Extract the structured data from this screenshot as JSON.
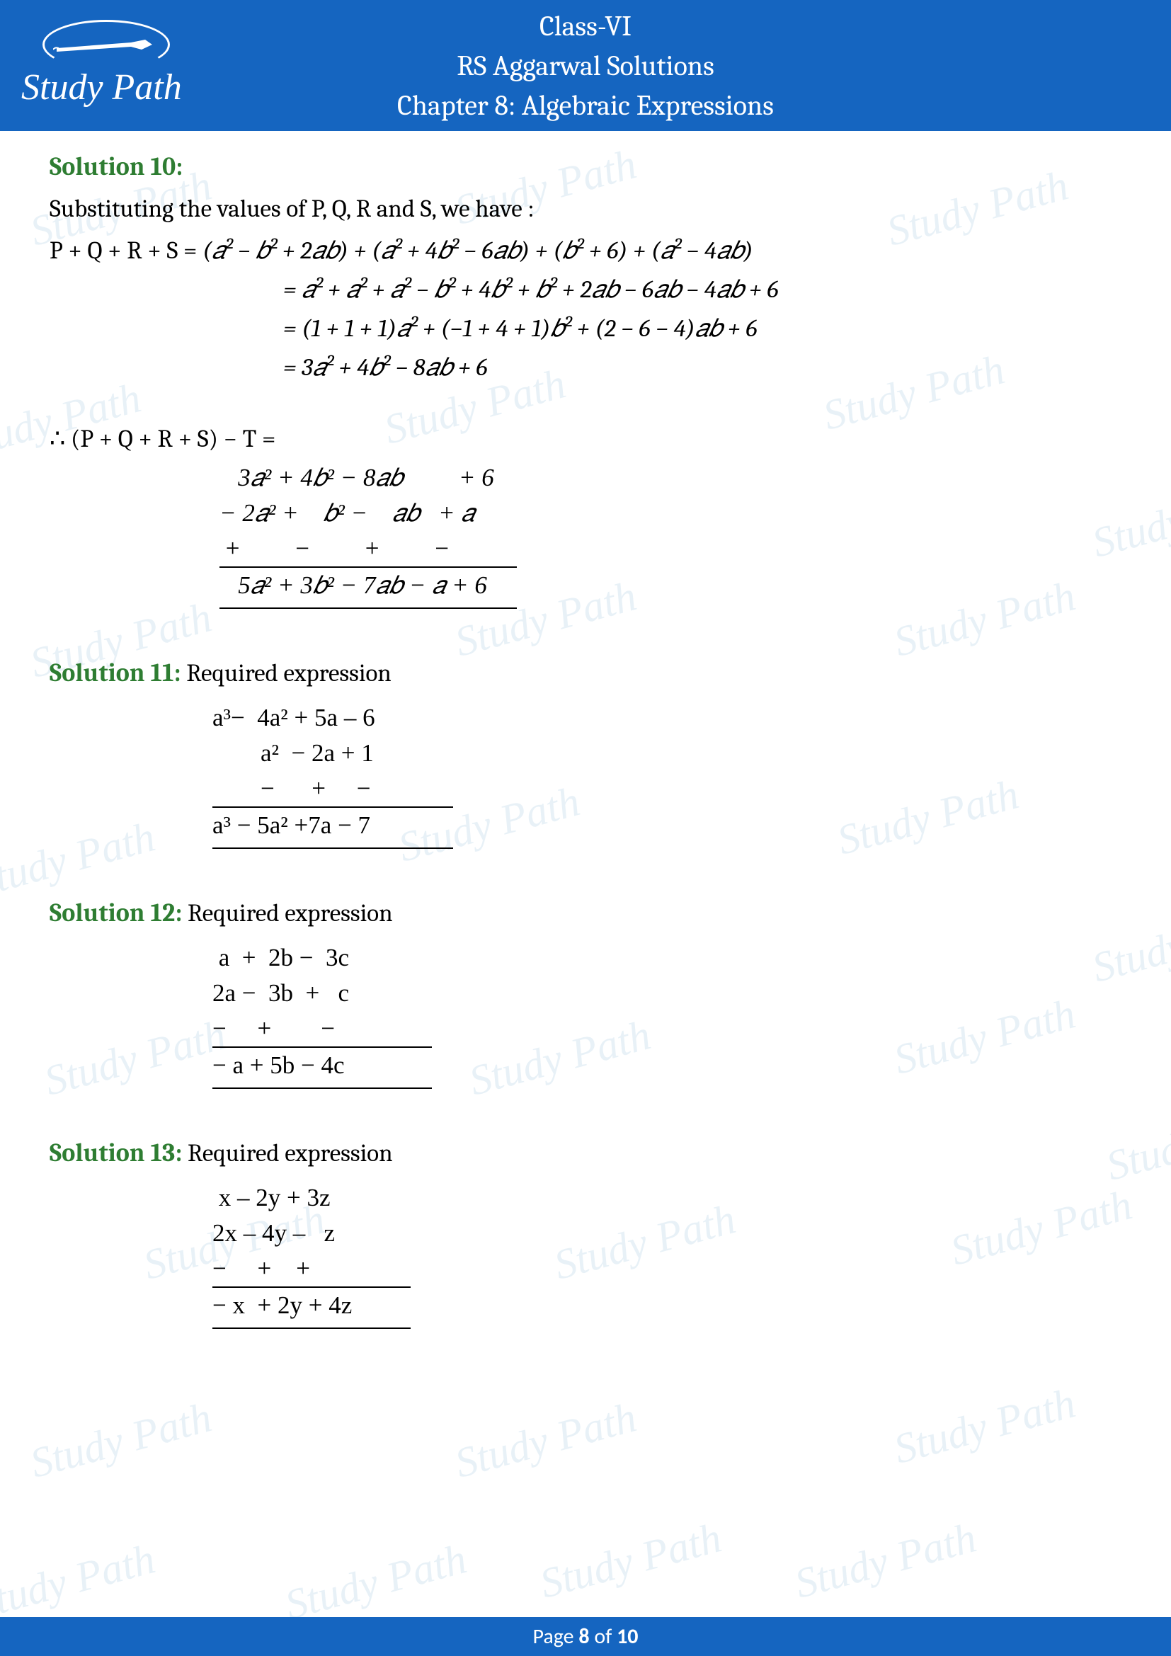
{
  "header": {
    "logo_text": "Study Path",
    "line1": "Class-VI",
    "line2": "RS Aggarwal Solutions",
    "line3": "Chapter 8: Algebraic Expressions",
    "bg_color": "#1565c0",
    "text_color": "#ffffff",
    "font_size": 40
  },
  "watermark": {
    "text": "Study Path",
    "color": "rgba(100,160,200,0.15)",
    "font_size": 60,
    "rotation_deg": -15,
    "positions": [
      [
        40,
        260
      ],
      [
        640,
        230
      ],
      [
        1250,
        260
      ],
      [
        -60,
        560
      ],
      [
        540,
        540
      ],
      [
        1160,
        520
      ],
      [
        40,
        870
      ],
      [
        640,
        840
      ],
      [
        1260,
        840
      ],
      [
        1540,
        700
      ],
      [
        -40,
        1180
      ],
      [
        560,
        1130
      ],
      [
        1180,
        1120
      ],
      [
        1540,
        1300
      ],
      [
        60,
        1460
      ],
      [
        660,
        1460
      ],
      [
        1260,
        1430
      ],
      [
        200,
        1720
      ],
      [
        780,
        1720
      ],
      [
        1340,
        1700
      ],
      [
        1560,
        1580
      ],
      [
        40,
        2000
      ],
      [
        640,
        2000
      ],
      [
        1260,
        1980
      ],
      [
        -40,
        2200
      ],
      [
        400,
        2200
      ],
      [
        760,
        2170
      ],
      [
        1120,
        2170
      ]
    ]
  },
  "solutions": {
    "s10": {
      "label": "Solution 10:",
      "intro": "Substituting the values of P, Q, R and S, we have :",
      "eq1_lhs": "P  +  Q  +  R  +  S  =  ",
      "eq1_rhs": "(𝑎² − 𝑏²  +  2𝑎𝑏) + (𝑎² + 4𝑏² − 6𝑎𝑏) + (𝑏² + 6)  + (𝑎²  − 4𝑎𝑏)",
      "eq2": "= 𝑎² + 𝑎² + 𝑎² − 𝑏² + 4𝑏² + 𝑏²  +  2𝑎𝑏 − 6𝑎𝑏 − 4𝑎𝑏 + 6",
      "eq3": "= (1 + 1 + 1)𝑎² + (−1 + 4 + 1)𝑏² + (2 − 6 − 4)𝑎𝑏 + 6",
      "eq4": "= 3𝑎² + 4𝑏² − 8𝑎𝑏 + 6",
      "therefore": "∴ (P  +  Q  +  R  +  S) − T =",
      "calc_r1": "   3𝑎² + 4𝑏² − 8𝑎𝑏         + 6",
      "calc_r2": "− 2𝑎² +    𝑏² −    𝑎𝑏   + 𝑎",
      "calc_r3": " +         −         +         −",
      "calc_res": "   5𝑎² + 3𝑏² − 7𝑎𝑏 − 𝑎 + 6"
    },
    "s11": {
      "label": "Solution 11:",
      "title": " Required expression",
      "r1": "a³−  4a² + 5a – 6",
      "r2": "a²  − 2a + 1",
      "r3": "−      +     −",
      "res": "a³ − 5a² +7a − 7"
    },
    "s12": {
      "label": "Solution 12:",
      "title": " Required expression",
      "r1": " a  +  2b −  3c",
      "r2": "2a −  3b  +   c",
      "r3": "−     +        −",
      "res": "− a + 5b − 4c"
    },
    "s13": {
      "label": "Solution 13:",
      "title": " Required expression",
      "r1": " x – 2y + 3z",
      "r2": "2x – 4y –   z",
      "r3": "−     +    +",
      "res": "− x  + 2y + 4z"
    }
  },
  "footer": {
    "prefix": "Page ",
    "page": "8",
    "of": " of ",
    "total": "10",
    "bg_color": "#1565c0"
  },
  "colors": {
    "solution_label": "#2e7d32",
    "body_text": "#000000",
    "page_bg": "#ffffff"
  }
}
